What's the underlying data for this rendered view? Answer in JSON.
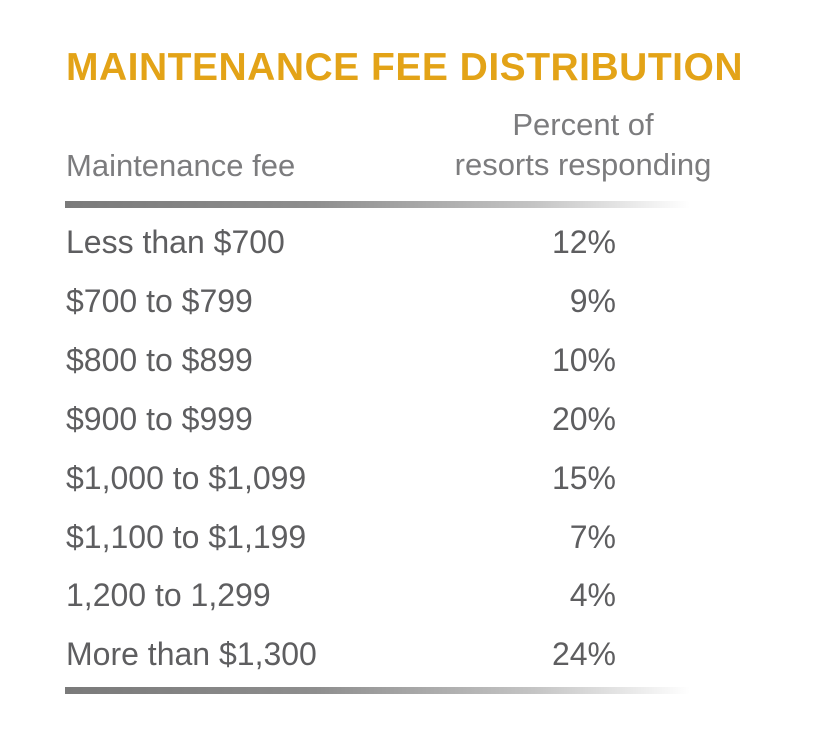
{
  "colors": {
    "title": "#E3A317",
    "header_text": "#7C7C7E",
    "body_text": "#5E5E60",
    "rule": "#7A7A7A"
  },
  "chart_data": {
    "type": "table",
    "title": "MAINTENANCE FEE DISTRIBUTION",
    "columns": [
      "Maintenance fee",
      "Percent of resorts responding"
    ],
    "column_header_lines": {
      "fee": "Maintenance fee",
      "percent_line1": "Percent of",
      "percent_line2": "resorts responding"
    },
    "rows": [
      {
        "label": "Less than $700",
        "value": "12%"
      },
      {
        "label": "$700 to $799",
        "value": "9%"
      },
      {
        "label": "$800 to $899",
        "value": "10%"
      },
      {
        "label": "$900 to $999",
        "value": "20%"
      },
      {
        "label": "$1,000 to $1,099",
        "value": "15%"
      },
      {
        "label": "$1,100 to $1,199",
        "value": "7%"
      },
      {
        "label": "1,200 to 1,299",
        "value": "4%"
      },
      {
        "label": "More than $1,300",
        "value": "24%"
      }
    ]
  }
}
